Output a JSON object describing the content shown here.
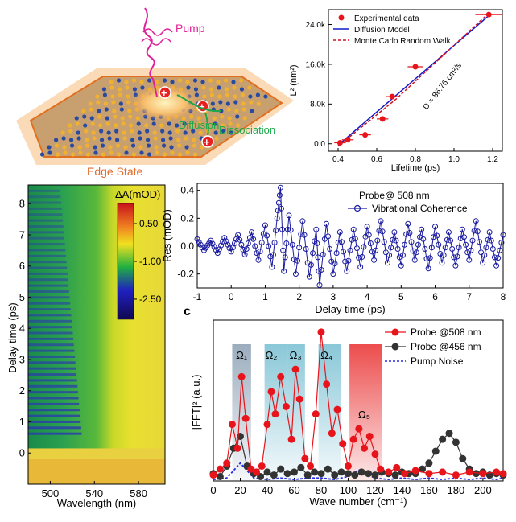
{
  "schematic": {
    "pump_label": "Pump",
    "edge_state_label": "Edge State",
    "diffusion_label": "Diffusion",
    "dissociation_label": "Dissociation",
    "charge_symbol": "+",
    "colors": {
      "pump": "#e0209a",
      "edge": "#e06a2a",
      "process": "#1aa84a",
      "charge": "#e82020"
    }
  },
  "chart_data": [
    {
      "id": "panel_a",
      "type": "scatter",
      "xlabel": "Lifetime (ps)",
      "ylabel": "L² (nm²)",
      "xlim": [
        0.35,
        1.25
      ],
      "ylim": [
        -1500,
        27000
      ],
      "x_ticks": [
        "0.4",
        "0.6",
        "0.8",
        "1.0",
        "1.2"
      ],
      "x_tick_values": [
        0.4,
        0.6,
        0.8,
        1.0,
        1.2
      ],
      "y_ticks": [
        "0.0",
        "8.0k",
        "16.0k",
        "24.0k"
      ],
      "y_tick_values": [
        0,
        8000,
        16000,
        24000
      ],
      "legend": [
        "Experimental data",
        "Diffusion Model",
        "Monte Carlo Random Walk"
      ],
      "annotation": "D = 86.76 cm²/s",
      "series": [
        {
          "name": "Experimental data",
          "color": "#e8141c",
          "x": [
            0.41,
            0.45,
            0.54,
            0.63,
            0.68,
            0.8,
            1.18
          ],
          "y": [
            200,
            800,
            1800,
            5000,
            9500,
            15500,
            26000
          ],
          "xerr": [
            0.03,
            0.03,
            0.03,
            0.03,
            0.03,
            0.04,
            0.07
          ]
        },
        {
          "name": "Diffusion Model",
          "color": "#1418c8",
          "x": [
            0.4,
            1.18
          ],
          "y": [
            -300,
            25800
          ]
        },
        {
          "name": "Monte Carlo Random Walk",
          "color": "#d01424",
          "x": [
            0.4,
            0.7,
            1.18
          ],
          "y": [
            -500,
            9000,
            26300
          ]
        }
      ]
    },
    {
      "id": "panel_map",
      "type": "heatmap",
      "xlabel": "Wavelength (nm)",
      "ylabel": "Delay time (ps)",
      "xlim": [
        480,
        604
      ],
      "ylim": [
        -1,
        8.6
      ],
      "x_ticks": [
        "500",
        "540",
        "580"
      ],
      "x_tick_values": [
        500,
        540,
        580
      ],
      "y_ticks": [
        "0",
        "1",
        "2",
        "3",
        "4",
        "5",
        "6",
        "7",
        "8"
      ],
      "y_tick_values": [
        0,
        1,
        2,
        3,
        4,
        5,
        6,
        7,
        8
      ],
      "colorbar_title": "ΔA(mOD)",
      "colorbar_ticks": [
        "0.50",
        "-1.00",
        "-2.50"
      ],
      "colorbar_tick_values": [
        0.5,
        -1.0,
        -2.5
      ],
      "colorbar_range": [
        -3.3,
        1.3
      ]
    },
    {
      "id": "panel_b",
      "type": "line",
      "xlabel": "Delay time (ps)",
      "ylabel": "Res (mOD)",
      "xlim": [
        -1,
        8
      ],
      "ylim": [
        -0.3,
        0.45
      ],
      "x_ticks": [
        "-1",
        "0",
        "1",
        "2",
        "3",
        "4",
        "5",
        "6",
        "7",
        "8"
      ],
      "x_tick_values": [
        -1,
        0,
        1,
        2,
        3,
        4,
        5,
        6,
        7,
        8
      ],
      "y_ticks": [
        "-0.2",
        "0.0",
        "0.2",
        "0.4"
      ],
      "y_tick_values": [
        -0.2,
        0,
        0.2,
        0.4
      ],
      "legend_title": "Probe@ 508 nm",
      "legend": [
        "Vibrational Coherence"
      ],
      "series": [
        {
          "name": "Vibrational Coherence",
          "color": "#1a1aa0",
          "x": [
            -1.0,
            -0.8,
            -0.6,
            -0.4,
            -0.2,
            0.0,
            0.2,
            0.4,
            0.6,
            0.8,
            1.0,
            1.2,
            1.35,
            1.45,
            1.55,
            1.7,
            1.9,
            2.1,
            2.3,
            2.5,
            2.6,
            2.8,
            3.0,
            3.2,
            3.4,
            3.6,
            3.8,
            4.0,
            4.2,
            4.4,
            4.6,
            4.8,
            5.0,
            5.2,
            5.4,
            5.6,
            5.8,
            6.0,
            6.2,
            6.4,
            6.6,
            6.8,
            7.0,
            7.2,
            7.4,
            7.6,
            7.8,
            8.0
          ],
          "y": [
            0.05,
            -0.03,
            0.04,
            -0.05,
            0.06,
            -0.04,
            0.08,
            -0.06,
            0.1,
            -0.1,
            0.15,
            -0.15,
            0.2,
            0.42,
            -0.18,
            0.22,
            -0.2,
            0.18,
            -0.22,
            0.12,
            -0.28,
            0.16,
            -0.2,
            0.1,
            -0.18,
            0.12,
            -0.15,
            0.14,
            -0.1,
            0.18,
            -0.12,
            0.1,
            -0.14,
            0.16,
            -0.1,
            0.12,
            -0.16,
            0.14,
            -0.12,
            0.1,
            -0.14,
            0.12,
            -0.1,
            0.18,
            -0.12,
            0.1,
            -0.14,
            0.08
          ]
        }
      ]
    },
    {
      "id": "panel_c",
      "type": "line",
      "panel_label": "c",
      "xlabel": "Wave number (cm⁻¹)",
      "ylabel": "|FFT|² (a.u.)",
      "xlim": [
        0,
        215
      ],
      "ylim": [
        0,
        1.08
      ],
      "x_ticks": [
        "0",
        "20",
        "40",
        "60",
        "80",
        "100",
        "120",
        "140",
        "160",
        "180",
        "200"
      ],
      "x_tick_values": [
        0,
        20,
        40,
        60,
        80,
        100,
        120,
        140,
        160,
        180,
        200
      ],
      "legend": [
        "Probe @508 nm",
        "Probe @456 nm",
        "Pump Noise"
      ],
      "modes": [
        {
          "label": "Ω₁",
          "x_center": 21,
          "x_from": 14,
          "x_to": 28,
          "color": "#4a6a88"
        },
        {
          "label": "Ω₂",
          "x_center": 43,
          "x_from": 38,
          "x_to": 55,
          "color": "#2a9ab8"
        },
        {
          "label": "Ω₃",
          "x_center": 61,
          "x_from": 55,
          "x_to": 68,
          "color": "#2a9ab8"
        },
        {
          "label": "Ω₄",
          "x_center": 84,
          "x_from": 78,
          "x_to": 95,
          "color": "#2aaacc"
        },
        {
          "label": "Ω₅",
          "x_center": 112,
          "x_from": 101,
          "x_to": 125,
          "color": "#e82020"
        }
      ],
      "series": [
        {
          "name": "Probe @508 nm",
          "color": "#e8141c",
          "x": [
            0,
            5,
            10,
            14,
            18,
            21,
            24,
            28,
            32,
            36,
            40,
            43,
            46,
            50,
            54,
            58,
            61,
            64,
            68,
            72,
            76,
            80,
            84,
            88,
            92,
            96,
            100,
            104,
            108,
            112,
            116,
            120,
            124,
            130,
            136,
            142,
            150,
            160,
            170,
            180,
            190,
            200,
            210,
            215
          ],
          "y": [
            0.04,
            0.08,
            0.12,
            0.38,
            0.22,
            0.7,
            0.42,
            0.08,
            0.06,
            0.1,
            0.38,
            0.6,
            0.45,
            0.7,
            0.5,
            0.28,
            0.75,
            0.55,
            0.15,
            0.1,
            0.45,
            1.0,
            0.65,
            0.32,
            0.48,
            0.25,
            0.1,
            0.28,
            0.35,
            0.22,
            0.3,
            0.18,
            0.08,
            0.06,
            0.09,
            0.05,
            0.07,
            0.05,
            0.06,
            0.04,
            0.06,
            0.05,
            0.06,
            0.05
          ]
        },
        {
          "name": "Probe @456 nm",
          "color": "#333333",
          "x": [
            0,
            5,
            10,
            15,
            20,
            25,
            30,
            35,
            40,
            45,
            50,
            55,
            60,
            65,
            70,
            75,
            80,
            85,
            90,
            95,
            100,
            105,
            110,
            115,
            120,
            125,
            130,
            135,
            140,
            145,
            150,
            155,
            160,
            165,
            170,
            175,
            180,
            185,
            190,
            195,
            200,
            205,
            210,
            215
          ],
          "y": [
            0.05,
            0.03,
            0.1,
            0.22,
            0.3,
            0.1,
            0.05,
            0.03,
            0.06,
            0.04,
            0.08,
            0.05,
            0.06,
            0.09,
            0.04,
            0.06,
            0.05,
            0.08,
            0.04,
            0.06,
            0.05,
            0.04,
            0.06,
            0.05,
            0.04,
            0.06,
            0.05,
            0.04,
            0.06,
            0.05,
            0.05,
            0.08,
            0.12,
            0.2,
            0.28,
            0.32,
            0.26,
            0.15,
            0.08,
            0.05,
            0.06,
            0.04,
            0.05,
            0.04
          ]
        },
        {
          "name": "Pump Noise",
          "color": "#2a2ae0",
          "x": [
            0,
            10,
            20,
            30,
            40,
            50,
            60,
            70,
            80,
            90,
            100,
            105,
            110,
            115,
            120,
            130,
            140,
            150,
            160,
            170,
            180,
            190,
            200,
            210,
            215
          ],
          "y": [
            0.01,
            0.02,
            0.12,
            0.02,
            0.01,
            0.02,
            0.01,
            0.02,
            0.02,
            0.01,
            0.03,
            0.06,
            0.08,
            0.04,
            0.02,
            0.01,
            0.02,
            0.01,
            0.02,
            0.01,
            0.02,
            0.01,
            0.02,
            0.01,
            0.02
          ]
        }
      ]
    }
  ]
}
